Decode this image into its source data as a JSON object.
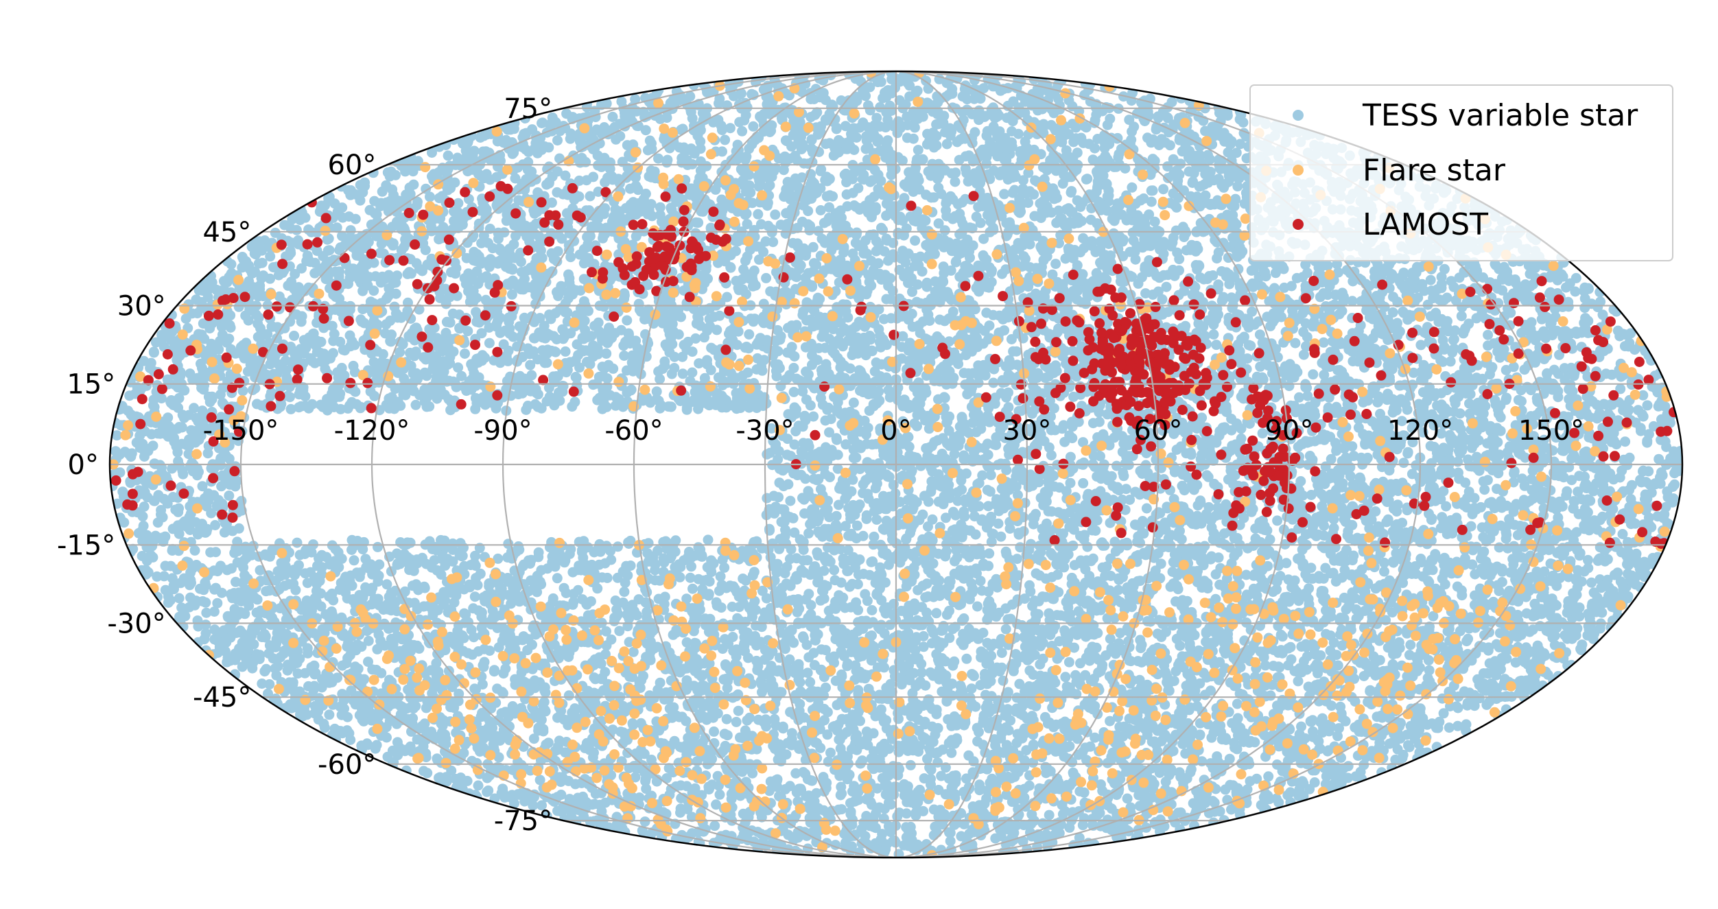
{
  "chart_data": {
    "type": "scatter",
    "projection": "mollweide",
    "lon_ticks": [
      "-150°",
      "-120°",
      "-90°",
      "-60°",
      "-30°",
      "0°",
      "30°",
      "60°",
      "90°",
      "120°",
      "150°"
    ],
    "lat_ticks": [
      "75°",
      "60°",
      "45°",
      "30°",
      "15°",
      "0°",
      "-15°",
      "-30°",
      "-45°",
      "-60°",
      "-75°"
    ],
    "grid": true,
    "legend_position": "top-right",
    "series": [
      {
        "name": "TESS variable star",
        "color": "#9ecae1",
        "sampled": true,
        "regions": [
          {
            "lon": [
              -180,
              180
            ],
            "lat": [
              -90,
              90
            ],
            "density": 1.0
          },
          {
            "lon": [
              -150,
              -30
            ],
            "lat": [
              -14,
              10
            ],
            "density": 0.0
          }
        ]
      },
      {
        "name": "Flare star",
        "color": "#fdbf6f",
        "sampled": true,
        "regions": [
          {
            "lon": [
              -180,
              180
            ],
            "lat": [
              -90,
              90
            ],
            "density": 0.15
          },
          {
            "lon": [
              -150,
              -40
            ],
            "lat": [
              -75,
              -25
            ],
            "density": 0.5
          },
          {
            "lon": [
              40,
              160
            ],
            "lat": [
              -75,
              -25
            ],
            "density": 0.5
          },
          {
            "lon": [
              -80,
              -40
            ],
            "lat": [
              30,
              60
            ],
            "density": 0.45
          }
        ]
      },
      {
        "name": "LAMOST",
        "color": "#cb2027",
        "sampled": true,
        "clusters": [
          {
            "lon": 58,
            "lat": 20,
            "n": 230,
            "spread": [
              9,
              6
            ]
          },
          {
            "lon": -62,
            "lat": 40,
            "n": 70,
            "spread": [
              7,
              4
            ]
          },
          {
            "lon": 85,
            "lat": -2,
            "n": 40,
            "spread": [
              3,
              3
            ]
          },
          {
            "lon": 85,
            "lat": 10,
            "n": 15,
            "spread": [
              3,
              2
            ]
          }
        ],
        "background": [
          {
            "lon": [
              -180,
              -90
            ],
            "lat": [
              -10,
              55
            ],
            "n": 130
          },
          {
            "lon": [
              30,
              180
            ],
            "lat": [
              -15,
              35
            ],
            "n": 160
          },
          {
            "lon": [
              -90,
              30
            ],
            "lat": [
              0,
              55
            ],
            "n": 40
          }
        ]
      }
    ]
  }
}
